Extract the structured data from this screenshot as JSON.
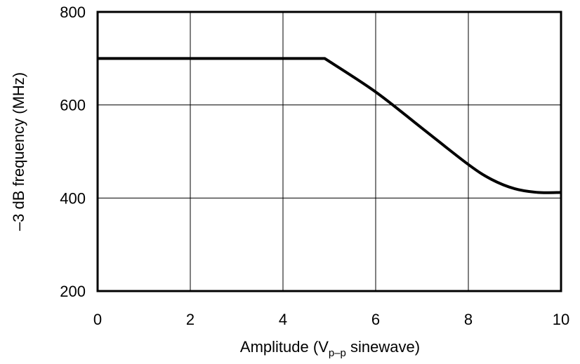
{
  "chart_data": {
    "type": "line",
    "title": "",
    "xlabel_parts": {
      "prefix": "Amplitude (V",
      "subscript": "p–p",
      "suffix": " sinewave)"
    },
    "ylabel": "–3 dB frequency (MHz)",
    "xlim": [
      0,
      10
    ],
    "ylim": [
      200,
      800
    ],
    "x_ticks": [
      0,
      2,
      4,
      6,
      8,
      10
    ],
    "x_tick_labels": [
      "0",
      "2",
      "4",
      "6",
      "8",
      "10"
    ],
    "y_ticks": [
      200,
      400,
      600,
      800
    ],
    "y_tick_labels": [
      "200",
      "400",
      "600",
      "800"
    ],
    "grid": true,
    "legend": "none",
    "series": [
      {
        "color": "#000000",
        "x": [
          0,
          4.9,
          6,
          7,
          8,
          8.5,
          9,
          9.5,
          10
        ],
        "y": [
          700,
          700,
          628,
          550,
          472,
          440,
          420,
          412,
          412
        ]
      }
    ]
  }
}
